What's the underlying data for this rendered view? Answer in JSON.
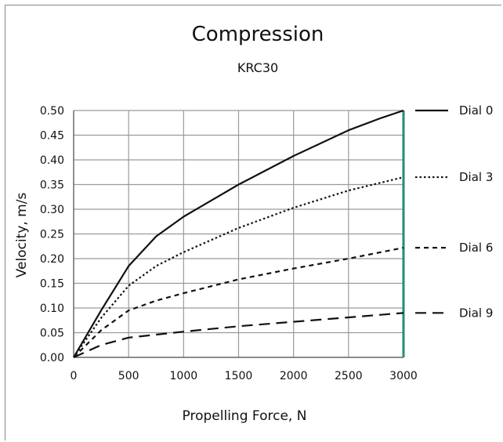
{
  "chart_data": {
    "type": "line",
    "title": "Compression",
    "subtitle": "KRC30",
    "xlabel": "Propelling Force, N",
    "ylabel": "Velocity, m/s",
    "xlim": [
      0,
      3000
    ],
    "ylim": [
      0,
      0.5
    ],
    "xticks": [
      "0",
      "500",
      "1000",
      "1500",
      "2000",
      "2500",
      "3000"
    ],
    "yticks": [
      "0.00",
      "0.05",
      "0.10",
      "0.15",
      "0.20",
      "0.25",
      "0.30",
      "0.35",
      "0.40",
      "0.45",
      "0.50"
    ],
    "grid": true,
    "legend_position": "right",
    "series": [
      {
        "name": "Dial 0",
        "style": "solid",
        "x": [
          0,
          250,
          500,
          750,
          1000,
          1500,
          2000,
          2500,
          2800,
          3000
        ],
        "y": [
          0,
          0.095,
          0.185,
          0.245,
          0.285,
          0.35,
          0.408,
          0.46,
          0.485,
          0.5
        ]
      },
      {
        "name": "Dial 3",
        "style": "dotted",
        "x": [
          0,
          250,
          500,
          750,
          1000,
          1500,
          2000,
          2500,
          3000
        ],
        "y": [
          0,
          0.08,
          0.145,
          0.185,
          0.213,
          0.262,
          0.303,
          0.338,
          0.365
        ]
      },
      {
        "name": "Dial 6",
        "style": "short-dash",
        "x": [
          0,
          250,
          500,
          750,
          1000,
          1500,
          2000,
          2500,
          3000
        ],
        "y": [
          0,
          0.055,
          0.095,
          0.115,
          0.13,
          0.158,
          0.18,
          0.2,
          0.222
        ]
      },
      {
        "name": "Dial 9",
        "style": "long-dash",
        "x": [
          0,
          250,
          500,
          750,
          1000,
          1500,
          2000,
          2500,
          3000
        ],
        "y": [
          0,
          0.025,
          0.04,
          0.046,
          0.052,
          0.063,
          0.072,
          0.081,
          0.09
        ]
      }
    ],
    "colors": {
      "line": "#111111",
      "grid": "#9a9a9a",
      "right_edge": "#1f8f78"
    }
  }
}
